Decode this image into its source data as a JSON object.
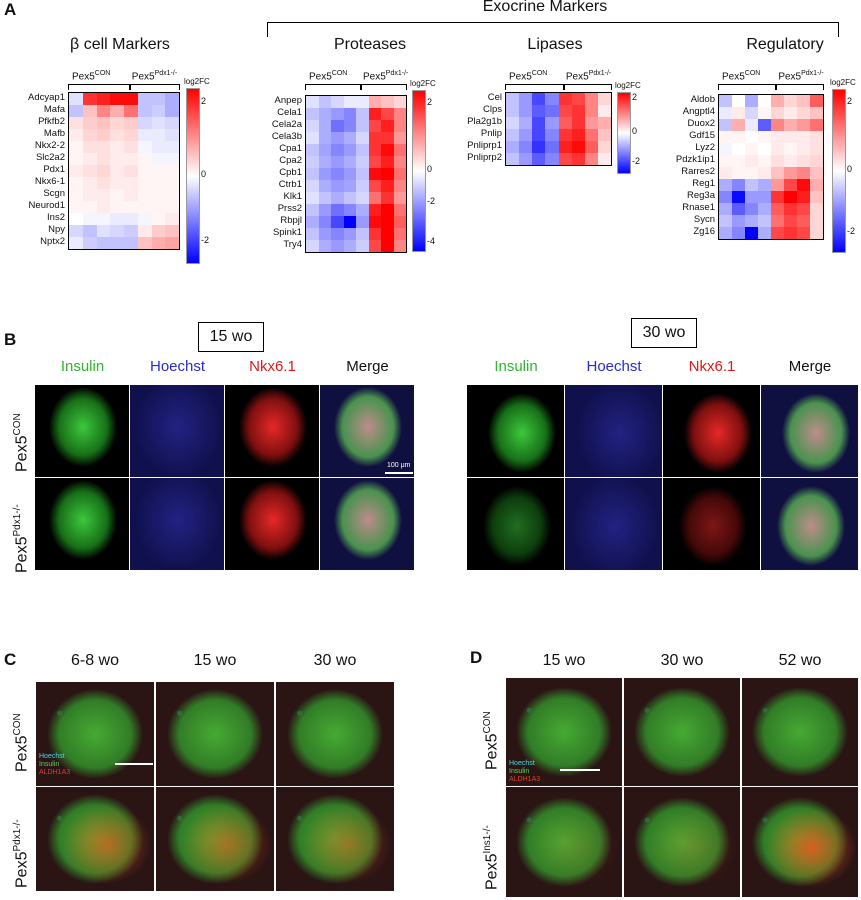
{
  "panelA": {
    "letter": "A",
    "exocrine_title": "Exocrine Markers",
    "colorbar": {
      "top": "2",
      "mid": "0",
      "bottom": "-2",
      "bottom_proteases": "-4",
      "mid2_proteases": "-2",
      "title": "log2FC"
    },
    "groups": {
      "con": "Pex5",
      "con_sup": "CON",
      "ko": "Pex5",
      "ko_sup": "Pdx1-/-"
    },
    "heatmaps": [
      {
        "title": "β cell Markers",
        "genes": [
          "Adcyap1",
          "Mafa",
          "Pfkfb2",
          "Mafb",
          "Nkx2-2",
          "Slc2a2",
          "Pdx1",
          "Nkx6-1",
          "Scgn",
          "Neurod1",
          "Ins2",
          "Npy",
          "Nptx2"
        ],
        "values": [
          [
            -0.3,
            2.0,
            2.2,
            2.4,
            2.4,
            -0.6,
            -0.6,
            -0.8
          ],
          [
            -0.6,
            0.6,
            1.2,
            0.8,
            1.4,
            -0.6,
            -0.5,
            -0.8
          ],
          [
            0.3,
            0.5,
            0.6,
            0.4,
            0.5,
            -0.4,
            -0.3,
            -0.4
          ],
          [
            0.2,
            0.4,
            0.5,
            0.3,
            0.4,
            -0.2,
            -0.2,
            -0.3
          ],
          [
            0.1,
            0.3,
            0.3,
            0.2,
            0.3,
            -0.1,
            -0.2,
            -0.2
          ],
          [
            0.1,
            0.2,
            0.3,
            0.2,
            0.2,
            0.1,
            -0.1,
            -0.1
          ],
          [
            0.2,
            0.3,
            0.4,
            0.2,
            0.3,
            0.1,
            0.1,
            0.1
          ],
          [
            0.1,
            0.2,
            0.3,
            0.2,
            0.2,
            0.1,
            0.1,
            0.1
          ],
          [
            0.1,
            0.2,
            0.2,
            0.1,
            0.2,
            0.1,
            0.1,
            0.1
          ],
          [
            0.1,
            0.1,
            0.2,
            0.1,
            0.1,
            0.1,
            0.1,
            0.1
          ],
          [
            0.0,
            -0.1,
            -0.1,
            -0.2,
            -0.2,
            -0.1,
            0.1,
            0.2
          ],
          [
            -0.4,
            -0.6,
            -0.3,
            -0.4,
            -0.5,
            0.2,
            0.5,
            0.6
          ],
          [
            -0.2,
            -0.5,
            -0.6,
            -0.6,
            -0.6,
            0.6,
            0.8,
            0.9
          ]
        ]
      },
      {
        "title": "Proteases",
        "genes": [
          "Anpep",
          "Cela1",
          "Cela2a",
          "Cela3b",
          "Cpa1",
          "Cpa2",
          "Cpb1",
          "Ctrb1",
          "Klk1",
          "Prss2",
          "Rbpjl",
          "Spink1",
          "Try4"
        ],
        "values": [
          [
            -0.3,
            -0.6,
            -0.4,
            -0.2,
            -0.2,
            0.8,
            0.6,
            0.4
          ],
          [
            -0.6,
            -0.8,
            -1.0,
            -1.2,
            -0.6,
            2.2,
            1.8,
            1.2
          ],
          [
            -0.4,
            -0.8,
            -1.4,
            -1.2,
            -0.6,
            1.8,
            2.2,
            1.2
          ],
          [
            -0.3,
            -0.8,
            -1.0,
            -0.8,
            -0.4,
            2.0,
            2.0,
            1.0
          ],
          [
            -0.6,
            -0.9,
            -1.2,
            -1.0,
            -0.6,
            2.0,
            2.4,
            1.4
          ],
          [
            -0.5,
            -0.8,
            -1.0,
            -0.8,
            -0.5,
            1.8,
            2.2,
            1.2
          ],
          [
            -0.6,
            -1.0,
            -1.2,
            -1.0,
            -0.6,
            2.4,
            2.6,
            1.4
          ],
          [
            -0.4,
            -0.8,
            -1.0,
            -0.9,
            -0.5,
            1.8,
            2.2,
            1.2
          ],
          [
            -0.3,
            -0.6,
            -0.8,
            -0.6,
            -0.4,
            1.4,
            2.0,
            1.0
          ],
          [
            -0.6,
            -1.0,
            -1.4,
            -1.2,
            -0.8,
            2.2,
            2.6,
            1.4
          ],
          [
            -0.8,
            -1.2,
            -1.8,
            -3.8,
            -1.0,
            2.4,
            2.8,
            1.6
          ],
          [
            -0.6,
            -1.0,
            -1.2,
            -1.0,
            -0.6,
            2.0,
            2.8,
            1.4
          ],
          [
            -0.4,
            -0.8,
            -1.0,
            -0.8,
            -0.5,
            1.8,
            2.6,
            1.2
          ]
        ]
      },
      {
        "title": "Lipases",
        "genes": [
          "Cel",
          "Clps",
          "Pla2g1b",
          "Pnlip",
          "Pnliprp1",
          "Pnliprp2"
        ],
        "values": [
          [
            -0.6,
            -1.0,
            -1.8,
            -1.2,
            2.0,
            1.8,
            1.2,
            0.4
          ],
          [
            -0.6,
            -1.0,
            -1.6,
            -1.4,
            1.8,
            2.0,
            1.2,
            0.2
          ],
          [
            -0.4,
            -0.8,
            -1.8,
            -1.0,
            1.6,
            2.0,
            1.0,
            0.8
          ],
          [
            -0.6,
            -1.0,
            -1.8,
            -1.2,
            2.0,
            2.2,
            1.4,
            0.6
          ],
          [
            -0.8,
            -1.2,
            -2.0,
            -1.4,
            2.2,
            2.4,
            1.6,
            0.4
          ],
          [
            -0.6,
            -1.0,
            -1.6,
            -1.2,
            1.8,
            2.0,
            1.2,
            0.2
          ]
        ]
      },
      {
        "title": "Regulatory",
        "genes": [
          "Aldob",
          "Angptl4",
          "Duox2",
          "Gdf15",
          "Lyz2",
          "Pdzk1ip1",
          "Rarres2",
          "Reg1",
          "Reg3a",
          "Rnase1",
          "Sycn",
          "Zg16"
        ],
        "values": [
          [
            -0.6,
            0.0,
            -0.8,
            0.0,
            0.8,
            0.4,
            0.6,
            1.6
          ],
          [
            -0.2,
            0.2,
            -0.4,
            0.1,
            0.4,
            0.2,
            0.4,
            0.6
          ],
          [
            -0.6,
            0.8,
            -0.2,
            -1.6,
            1.2,
            0.8,
            1.0,
            1.4
          ],
          [
            0.1,
            0.1,
            0.0,
            0.1,
            0.2,
            0.2,
            0.2,
            0.3
          ],
          [
            -0.1,
            0.0,
            0.1,
            0.0,
            0.2,
            0.1,
            0.2,
            0.3
          ],
          [
            0.1,
            0.1,
            0.2,
            0.1,
            0.3,
            0.2,
            0.3,
            0.4
          ],
          [
            0.2,
            0.1,
            0.1,
            0.2,
            0.6,
            1.0,
            1.2,
            0.6
          ],
          [
            -0.8,
            -1.2,
            -0.6,
            -0.8,
            1.0,
            1.8,
            2.4,
            0.8
          ],
          [
            -1.2,
            -2.4,
            -1.0,
            -1.0,
            2.0,
            2.6,
            2.2,
            0.6
          ],
          [
            -0.8,
            -1.6,
            -1.2,
            -0.8,
            1.6,
            2.0,
            1.8,
            0.4
          ],
          [
            -0.6,
            -1.0,
            -0.8,
            -0.6,
            1.4,
            1.8,
            1.6,
            0.4
          ],
          [
            -0.8,
            -1.2,
            -2.6,
            -0.8,
            1.8,
            2.0,
            1.8,
            0.4
          ]
        ]
      }
    ]
  },
  "panelB": {
    "letter": "B",
    "time1": "15 wo",
    "time2": "30 wo",
    "channels": [
      "Insulin",
      "Hoechst",
      "Nkx6.1",
      "Merge"
    ],
    "row1": {
      "base": "Pex5",
      "sup": "CON"
    },
    "row2": {
      "base": "Pex5",
      "sup": "Pdx1-/-"
    },
    "scalebar": "100 μm"
  },
  "panelC": {
    "letter": "C",
    "times": [
      "6-8 wo",
      "15 wo",
      "30 wo"
    ],
    "row1": {
      "base": "Pex5",
      "sup": "CON"
    },
    "row2": {
      "base": "Pex5",
      "sup": "Pdx1-/-"
    },
    "legend": [
      "Hoechst",
      "Insulin",
      "ALDH1A3"
    ]
  },
  "panelD": {
    "letter": "D",
    "times": [
      "15 wo",
      "30 wo",
      "52 wo"
    ],
    "row1": {
      "base": "Pex5",
      "sup": "CON"
    },
    "row2": {
      "base": "Pex5",
      "sup": "Ins1-/-"
    },
    "legend": [
      "Hoechst",
      "Insulin",
      "ALDH1A3"
    ]
  },
  "colors": {
    "green": "#2fb52f",
    "blue": "#2a2ad6",
    "red": "#e01818"
  }
}
